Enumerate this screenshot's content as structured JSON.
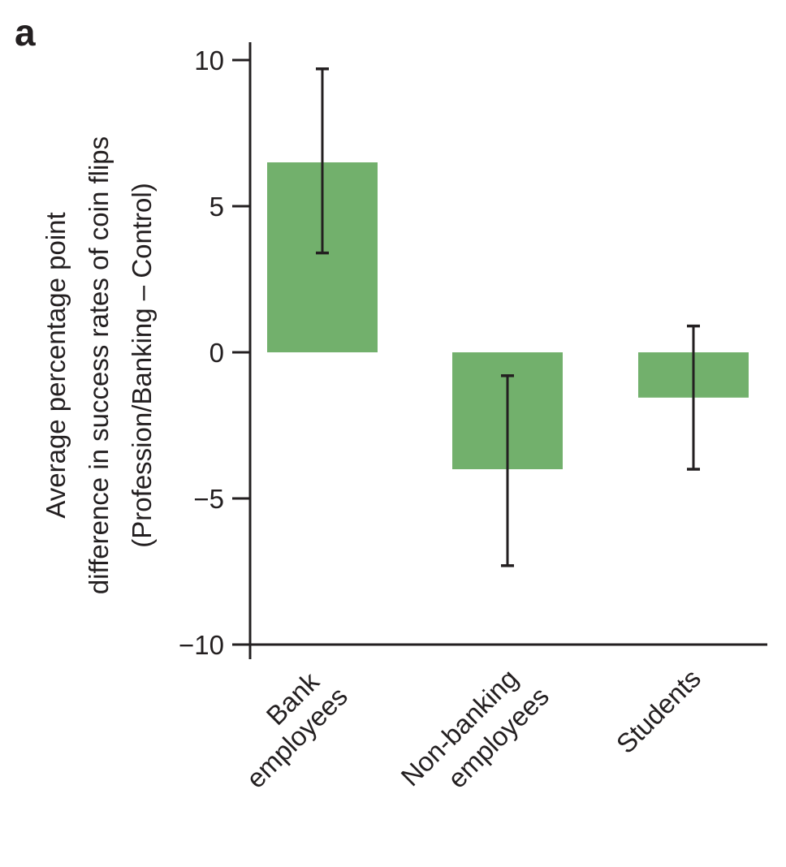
{
  "chart_data": {
    "type": "bar",
    "panel_label": "a",
    "title": "",
    "xlabel": "",
    "ylabel_lines": [
      "Average percentage point",
      "difference in success rates of coin flips",
      "(Profession/Banking – Control)"
    ],
    "ylim": [
      -10,
      10
    ],
    "yticks": [
      10,
      5,
      0,
      -5,
      -10
    ],
    "ytick_labels": [
      "10",
      "5",
      "0",
      "−5",
      "−10"
    ],
    "categories": [
      [
        "Bank",
        "employees"
      ],
      [
        "Non-banking",
        "employees"
      ],
      [
        "Students"
      ]
    ],
    "values": [
      6.5,
      -4.0,
      -1.55
    ],
    "error_bars": [
      {
        "low": 3.4,
        "high": 9.7
      },
      {
        "low": -7.3,
        "high": -0.8
      },
      {
        "low": -4.0,
        "high": 0.9
      }
    ],
    "grid": false,
    "legend": "none",
    "bar_color": "#72b06c",
    "axis_color": "#231f20"
  }
}
